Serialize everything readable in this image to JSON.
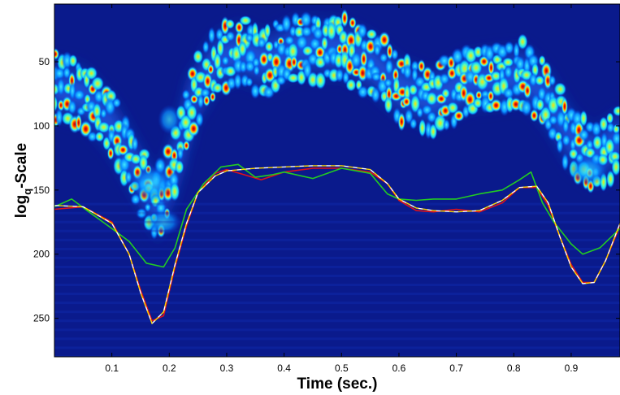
{
  "chart_data": {
    "type": "heatmap",
    "title": "",
    "xlabel": "Time (sec.)",
    "ylabel": {
      "base": "log",
      "subscript": "q",
      "rest": "-Scale"
    },
    "xlim": [
      0,
      0.985
    ],
    "ylim": [
      280,
      5
    ],
    "y_direction": "reversed",
    "xticks": [
      0.1,
      0.2,
      0.3,
      0.4,
      0.5,
      0.6,
      0.7,
      0.8,
      0.9
    ],
    "xtick_labels": [
      "0.1",
      "0.2",
      "0.3",
      "0.4",
      "0.5",
      "0.6",
      "0.7",
      "0.8",
      "0.9"
    ],
    "yticks": [
      50,
      100,
      150,
      200,
      250
    ],
    "ytick_labels": [
      "50",
      "100",
      "150",
      "200",
      "250"
    ],
    "grid": false,
    "legend": "none",
    "colormap": "jet",
    "background_color": "#0a1a8c",
    "series": [
      {
        "color": "#e0101a",
        "style": "solid",
        "x": [
          0,
          0.05,
          0.1,
          0.13,
          0.15,
          0.17,
          0.19,
          0.21,
          0.23,
          0.25,
          0.28,
          0.3,
          0.33,
          0.36,
          0.4,
          0.45,
          0.5,
          0.55,
          0.58,
          0.6,
          0.63,
          0.66,
          0.7,
          0.74,
          0.78,
          0.81,
          0.84,
          0.86,
          0.88,
          0.9,
          0.92,
          0.94,
          0.96,
          0.985
        ],
        "y": [
          165,
          163,
          175,
          200,
          228,
          252,
          248,
          210,
          178,
          152,
          137,
          134,
          138,
          142,
          136,
          133,
          133,
          136,
          145,
          158,
          166,
          167,
          165,
          167,
          160,
          148,
          148,
          162,
          186,
          208,
          222,
          222,
          205,
          178
        ]
      },
      {
        "color": "#22cc22",
        "style": "solid",
        "x": [
          0,
          0.03,
          0.06,
          0.1,
          0.13,
          0.16,
          0.19,
          0.21,
          0.23,
          0.26,
          0.29,
          0.32,
          0.35,
          0.38,
          0.4,
          0.45,
          0.5,
          0.55,
          0.58,
          0.6,
          0.63,
          0.66,
          0.7,
          0.74,
          0.78,
          0.81,
          0.83,
          0.85,
          0.87,
          0.9,
          0.92,
          0.95,
          0.985
        ],
        "y": [
          163,
          157,
          167,
          180,
          190,
          207,
          210,
          195,
          165,
          145,
          132,
          130,
          140,
          138,
          136,
          141,
          133,
          137,
          153,
          157,
          158,
          157,
          157,
          153,
          150,
          142,
          136,
          160,
          175,
          192,
          200,
          195,
          180
        ]
      },
      {
        "color": "#ffffff",
        "style": "dashed",
        "x": [
          0,
          0.05,
          0.1,
          0.13,
          0.15,
          0.17,
          0.19,
          0.21,
          0.23,
          0.25,
          0.28,
          0.3,
          0.35,
          0.4,
          0.45,
          0.5,
          0.55,
          0.58,
          0.6,
          0.63,
          0.66,
          0.7,
          0.74,
          0.78,
          0.81,
          0.84,
          0.86,
          0.88,
          0.9,
          0.92,
          0.94,
          0.96,
          0.985
        ],
        "y": [
          162,
          163,
          176,
          200,
          230,
          254,
          245,
          208,
          176,
          152,
          139,
          135,
          133,
          132,
          131,
          131,
          134,
          145,
          157,
          164,
          166,
          167,
          166,
          158,
          148,
          147,
          160,
          186,
          210,
          223,
          222,
          205,
          176
        ]
      },
      {
        "color": "#ffd800",
        "style": "dashed",
        "x": [
          0,
          0.05,
          0.1,
          0.13,
          0.15,
          0.17,
          0.19,
          0.21,
          0.23,
          0.25,
          0.28,
          0.3,
          0.35,
          0.4,
          0.45,
          0.5,
          0.55,
          0.58,
          0.6,
          0.63,
          0.66,
          0.7,
          0.74,
          0.78,
          0.81,
          0.84,
          0.86,
          0.88,
          0.9,
          0.92,
          0.94,
          0.96,
          0.985
        ],
        "y": [
          162,
          163,
          176,
          200,
          230,
          254,
          245,
          208,
          176,
          152,
          139,
          135,
          133,
          132,
          131,
          131,
          134,
          145,
          157,
          164,
          166,
          167,
          166,
          158,
          148,
          147,
          160,
          186,
          210,
          223,
          222,
          205,
          176
        ]
      }
    ]
  }
}
